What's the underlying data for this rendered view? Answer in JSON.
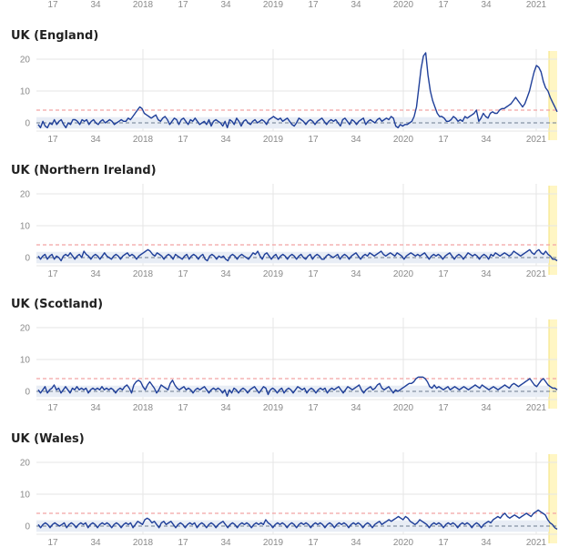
{
  "colors": {
    "line": "#1f3f99",
    "threshold": "#f2a3a3",
    "baseline": "#6b7a90",
    "band": "#e8edf5",
    "grid": "#e6e6e6",
    "highlight": "#fff6c4",
    "highlight_edge": "#f5e27a"
  },
  "top_axis": {
    "tick_labels": [
      "17",
      "34",
      "2018",
      "17",
      "34",
      "2019",
      "17",
      "34",
      "2020",
      "17",
      "34",
      "2021"
    ]
  },
  "chart_data": [
    {
      "type": "line",
      "title": "UK (England)",
      "ylim": [
        -2,
        22
      ],
      "yticks": [
        "0",
        "10",
        "20"
      ],
      "x_tick_labels": [
        "17",
        "34",
        "2018",
        "17",
        "34",
        "2019",
        "17",
        "34",
        "2020",
        "17",
        "34",
        "2021"
      ],
      "threshold": 4,
      "baseline": 0,
      "series": [
        {
          "values": [
            -0.5,
            -1.5,
            0.5,
            -1,
            -1.5,
            0,
            -0.5,
            1,
            -0.5,
            0.5,
            1,
            -0.5,
            -1.5,
            0,
            -0.5,
            1,
            1,
            0.5,
            -0.5,
            1,
            0.5,
            1,
            -0.5,
            0.5,
            1,
            0,
            -0.5,
            0.5,
            1,
            0,
            0.5,
            1,
            0.5,
            -0.5,
            0,
            0.5,
            1,
            0.5,
            0.5,
            1.5,
            1,
            2,
            3,
            4,
            5,
            4.5,
            3,
            2.5,
            2,
            1.5,
            2,
            2.5,
            1,
            0.5,
            1.5,
            2,
            1,
            -0.5,
            0.5,
            1.5,
            1,
            -0.5,
            1,
            1.5,
            0.5,
            -0.5,
            1,
            0.5,
            1.5,
            0.5,
            -0.5,
            0,
            0.5,
            -0.5,
            1,
            -1,
            0.5,
            1,
            0.5,
            0,
            -1,
            0.5,
            -1.5,
            1,
            0.5,
            -0.5,
            1.5,
            0.5,
            -1,
            0.5,
            1,
            0,
            -0.5,
            0.5,
            1,
            0,
            0.5,
            1,
            0.5,
            -0.5,
            1,
            1.5,
            2,
            1.5,
            1,
            1.5,
            0.5,
            1,
            1.5,
            0.5,
            -0.5,
            -1,
            0,
            1.5,
            1,
            0.5,
            -0.5,
            0.5,
            1,
            0.5,
            -0.5,
            0.5,
            1,
            1.5,
            0.5,
            -0.5,
            0.5,
            1,
            0.5,
            1,
            0,
            -1,
            1,
            1.5,
            0.5,
            -0.5,
            1,
            0.5,
            -0.5,
            0.5,
            1,
            1.5,
            -0.5,
            0.5,
            1,
            0.5,
            0,
            1,
            1.5,
            0.5,
            1,
            1.5,
            1,
            2,
            1.5,
            -1,
            -1.5,
            -0.5,
            -1,
            -0.5,
            -0.5,
            0,
            0.5,
            2,
            5,
            11,
            17,
            21,
            22,
            15,
            10,
            7,
            5,
            3,
            2,
            2,
            1.5,
            0.5,
            0.5,
            1,
            2,
            1.5,
            0.5,
            1,
            0.5,
            2,
            1.5,
            2,
            2.5,
            3,
            4,
            0.5,
            1.5,
            3,
            2,
            1.5,
            3,
            3.5,
            3,
            3,
            4,
            4.5,
            4.5,
            5,
            5.5,
            6,
            7,
            8,
            7,
            6,
            5,
            6,
            8,
            10,
            13,
            16,
            18,
            17.5,
            16,
            13,
            11,
            10,
            8,
            6.5,
            5,
            3.5
          ]
        }
      ]
    },
    {
      "type": "line",
      "title": "UK (Northern Ireland)",
      "ylim": [
        -2,
        22
      ],
      "yticks": [
        "0",
        "10",
        "20"
      ],
      "x_tick_labels": [
        "17",
        "34",
        "2018",
        "17",
        "34",
        "2019",
        "17",
        "34",
        "2020",
        "17",
        "34",
        "2021"
      ],
      "threshold": 4,
      "baseline": 0,
      "series": [
        {
          "values": [
            0.5,
            -0.5,
            0.5,
            1,
            -0.5,
            0.5,
            1,
            -0.5,
            0.5,
            0,
            -1,
            0.5,
            1,
            0.5,
            1.5,
            0.5,
            -0.5,
            0.5,
            1,
            0,
            2,
            1,
            0.5,
            -0.5,
            0.5,
            1,
            0.5,
            -0.5,
            0.5,
            1.5,
            0.5,
            0,
            -0.5,
            0.5,
            1,
            0.5,
            -0.5,
            0.5,
            1,
            1.5,
            0.5,
            1,
            0.5,
            -0.5,
            0.5,
            1,
            1.5,
            2,
            2.5,
            2,
            1,
            0.5,
            1.5,
            1,
            0.5,
            -0.5,
            0.5,
            1,
            0.5,
            -0.5,
            1,
            0.5,
            0,
            -0.5,
            0.5,
            1,
            -0.5,
            0.5,
            1,
            0.5,
            -0.5,
            0.5,
            1,
            -0.5,
            -1,
            0.5,
            1,
            0.5,
            -0.5,
            0.5,
            0,
            0.5,
            -0.5,
            -1,
            0.5,
            1,
            0.5,
            -0.5,
            0.5,
            1,
            0.5,
            0,
            -0.5,
            0.5,
            1.5,
            1,
            2,
            0.5,
            -0.5,
            1,
            1.5,
            0.5,
            -0.5,
            0.5,
            1,
            -0.5,
            0.5,
            1,
            0.5,
            -0.5,
            0.5,
            1,
            0.5,
            -0.5,
            0.5,
            1,
            0,
            -0.5,
            0.5,
            1,
            -0.5,
            0.5,
            1,
            0.5,
            -0.5,
            -0.5,
            0.5,
            1,
            0.5,
            0,
            0.5,
            1,
            -0.5,
            0.5,
            1,
            0.5,
            -0.5,
            0.5,
            1,
            1.5,
            0.5,
            -0.5,
            0.5,
            1,
            0.5,
            1.5,
            1,
            0.5,
            1,
            1.5,
            2,
            1,
            0.5,
            1,
            1.5,
            1,
            0.5,
            1.5,
            1,
            0.5,
            -0.5,
            0.5,
            1,
            1.5,
            1,
            0.5,
            1,
            0.5,
            1,
            1.5,
            0.5,
            -0.5,
            0.5,
            1,
            0.5,
            1,
            0.5,
            -0.5,
            0.5,
            1,
            1.5,
            0.5,
            -0.5,
            0.5,
            1,
            0.5,
            -0.5,
            0.5,
            1.5,
            1,
            0.5,
            1,
            0.5,
            -0.5,
            0.5,
            1,
            0.5,
            -0.5,
            1,
            0.5,
            1.5,
            1,
            0.5,
            1,
            1.5,
            1,
            0.5,
            1,
            2,
            1.5,
            1,
            0.5,
            1,
            1.5,
            2,
            2.5,
            1.5,
            1,
            2,
            2.5,
            1.5,
            1,
            2,
            1,
            0.5,
            -0.5,
            -0.5,
            -1
          ]
        }
      ]
    },
    {
      "type": "line",
      "title": "UK (Scotland)",
      "ylim": [
        -2,
        22
      ],
      "yticks": [
        "0",
        "10",
        "20"
      ],
      "x_tick_labels": [
        "17",
        "34",
        "2018",
        "17",
        "34",
        "2019",
        "17",
        "34",
        "2020",
        "17",
        "34",
        "2021"
      ],
      "threshold": 4,
      "baseline": 0,
      "series": [
        {
          "values": [
            0.5,
            -0.5,
            0.5,
            1.5,
            -0.5,
            0.5,
            1,
            2,
            0.5,
            1,
            -0.5,
            0.5,
            1.5,
            0.5,
            -0.5,
            1,
            0.5,
            1.5,
            0.5,
            1,
            0.5,
            1,
            -0.5,
            0.5,
            1,
            0.5,
            1,
            0.5,
            1.5,
            0.5,
            1,
            0.5,
            1,
            0.5,
            -0.5,
            0.5,
            1,
            0.5,
            1.5,
            2,
            1,
            -0.5,
            2,
            3,
            3.5,
            3,
            1.5,
            0.5,
            2,
            3,
            2,
            1,
            -0.5,
            0.5,
            2,
            1.5,
            1,
            0.5,
            2.5,
            3.5,
            2,
            1,
            0.5,
            1,
            1.5,
            0.5,
            1,
            0.5,
            -0.5,
            0.5,
            1,
            0.5,
            1,
            1.5,
            0.5,
            -0.5,
            0.5,
            1,
            0.5,
            1,
            0.5,
            -0.5,
            0.5,
            -1.5,
            0.5,
            -0.5,
            1,
            0.5,
            -0.5,
            0.5,
            1,
            0.5,
            -0.5,
            0.5,
            1,
            1.5,
            0.5,
            -0.5,
            0.5,
            1.5,
            1,
            -1,
            0.5,
            1,
            0.5,
            -0.5,
            0.5,
            1,
            -0.5,
            0.5,
            1,
            0.5,
            -0.5,
            0.5,
            1.5,
            1,
            0.5,
            1,
            -0.5,
            0.5,
            1,
            0.5,
            -0.5,
            0.5,
            1,
            0.5,
            1,
            -0.5,
            0.5,
            1,
            0.5,
            1,
            1.5,
            0.5,
            -0.5,
            0.5,
            1.5,
            1,
            0.5,
            1,
            1.5,
            2,
            0.5,
            -0.5,
            0.5,
            1,
            1.5,
            0.5,
            1,
            2,
            2.5,
            1,
            0.5,
            1,
            1.5,
            0.5,
            -0.5,
            0.5,
            0,
            0.5,
            1,
            1.5,
            2,
            2.5,
            2.5,
            3,
            4,
            4.5,
            4.5,
            4.5,
            4,
            3,
            1.5,
            1,
            2,
            1,
            1.5,
            1,
            0.5,
            1,
            1.5,
            0.5,
            1,
            1.5,
            1,
            0.5,
            1,
            1.5,
            1,
            0.5,
            1,
            1.5,
            2,
            1.5,
            1,
            2,
            1.5,
            1,
            0.5,
            1,
            1.5,
            1,
            0.5,
            1,
            1.5,
            2,
            1.5,
            1,
            2,
            2.5,
            2,
            1.5,
            2,
            2.5,
            3,
            3.5,
            4,
            3,
            2,
            1.5,
            2.5,
            3.5,
            4,
            3,
            2,
            1.5,
            1,
            1,
            0.5
          ]
        }
      ]
    },
    {
      "type": "line",
      "title": "UK (Wales)",
      "ylim": [
        -2,
        22
      ],
      "yticks": [
        "0",
        "10",
        "20"
      ],
      "x_tick_labels": [
        "17",
        "34",
        "2018",
        "17",
        "34",
        "2019",
        "17",
        "34",
        "2020",
        "17",
        "34",
        "2021"
      ],
      "threshold": 4,
      "baseline": 0,
      "series": [
        {
          "values": [
            0.5,
            -0.5,
            0.5,
            1,
            0.5,
            -0.5,
            0.5,
            1,
            0.5,
            0,
            0.5,
            1,
            -0.5,
            0.5,
            1,
            0.5,
            -0.5,
            0.5,
            1,
            0.5,
            1,
            -0.5,
            0.5,
            1,
            0.5,
            -0.5,
            0.5,
            1,
            0.5,
            1,
            0.5,
            -0.5,
            0.5,
            1,
            0.5,
            -0.5,
            0.5,
            1,
            0.5,
            1,
            -0.5,
            0.5,
            1.5,
            1,
            0.5,
            2,
            2.5,
            2,
            1,
            1.5,
            0.5,
            -0.5,
            1,
            1.5,
            0.5,
            1,
            1.5,
            0.5,
            -0.5,
            0.5,
            1,
            0.5,
            -0.5,
            0.5,
            1,
            0.5,
            1,
            -0.5,
            0.5,
            1,
            0.5,
            -0.5,
            0.5,
            1,
            0.5,
            -0.5,
            0.5,
            1,
            1.5,
            0.5,
            -0.5,
            0.5,
            1,
            0.5,
            -0.5,
            0.5,
            1,
            0.5,
            1,
            0.5,
            -0.5,
            0.5,
            1,
            0.5,
            1,
            0.5,
            2,
            1,
            0.5,
            -0.5,
            0.5,
            1,
            0.5,
            1,
            0.5,
            -0.5,
            0.5,
            1,
            0.5,
            -0.5,
            0.5,
            1,
            0.5,
            1,
            0.5,
            -0.5,
            0.5,
            1,
            0.5,
            1,
            0.5,
            -0.5,
            0.5,
            1,
            0.5,
            -0.5,
            0.5,
            1,
            0.5,
            1,
            0.5,
            -0.5,
            0.5,
            1,
            0.5,
            1,
            0.5,
            -0.5,
            0.5,
            1,
            0.5,
            -0.5,
            0.5,
            1,
            1.5,
            0.5,
            1,
            1.5,
            2,
            1.5,
            2,
            2.5,
            3,
            2.5,
            2,
            3,
            2.5,
            1.5,
            1,
            0.5,
            1,
            2,
            1.5,
            1,
            0.5,
            -0.5,
            0.5,
            1,
            0.5,
            1,
            0.5,
            -0.5,
            0.5,
            1,
            0.5,
            1,
            0.5,
            -0.5,
            0.5,
            1,
            0.5,
            1,
            0.5,
            -0.5,
            0.5,
            1,
            0.5,
            -0.5,
            0.5,
            1,
            1.5,
            1,
            2,
            2.5,
            3,
            2.5,
            3.5,
            4,
            3,
            2.5,
            3,
            3.5,
            3,
            2.5,
            3,
            3.5,
            4,
            3.5,
            3,
            4,
            4.5,
            5,
            4.5,
            4,
            3.5,
            2,
            1,
            0.5,
            -0.5,
            -1
          ]
        }
      ]
    }
  ]
}
